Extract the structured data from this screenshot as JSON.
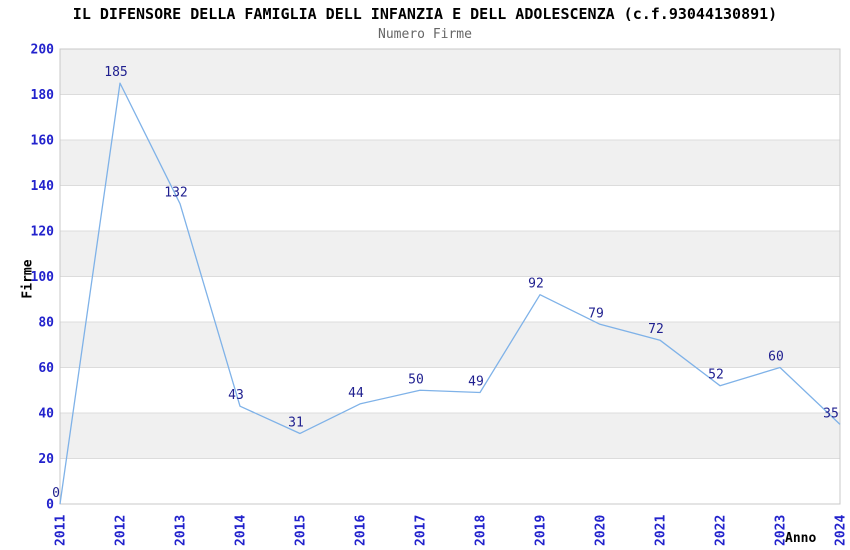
{
  "chart_data": {
    "type": "line",
    "title": "IL DIFENSORE DELLA FAMIGLIA DELL INFANZIA E DELL ADOLESCENZA (c.f.93044130891)",
    "subtitle": "Numero Firme",
    "xlabel": "Anno",
    "ylabel": "Firme",
    "categories": [
      "2011",
      "2012",
      "2013",
      "2014",
      "2015",
      "2016",
      "2017",
      "2018",
      "2019",
      "2020",
      "2021",
      "2022",
      "2023",
      "2024"
    ],
    "values": [
      0,
      185,
      132,
      43,
      31,
      44,
      50,
      49,
      92,
      79,
      72,
      52,
      60,
      35
    ],
    "ylim": [
      0,
      200
    ],
    "ytick_step": 20,
    "yticks": [
      0,
      20,
      40,
      60,
      80,
      100,
      120,
      140,
      160,
      180,
      200
    ],
    "grid": true,
    "legend": "none",
    "band_pattern": "alternating gray/white horizontal bands, gray on odd 20-unit bands",
    "colors": {
      "line": "#7FB2E8",
      "data_label": "#1F1F8F",
      "tick_label": "#2222CC",
      "band_gray": "#F0F0F0",
      "band_white": "#FFFFFF",
      "grid_line": "#DCDCDC",
      "plot_border": "#C8C8C8",
      "title": "#000000",
      "subtitle": "#666666",
      "axis_label": "#000000",
      "background": "#FFFFFF"
    }
  }
}
